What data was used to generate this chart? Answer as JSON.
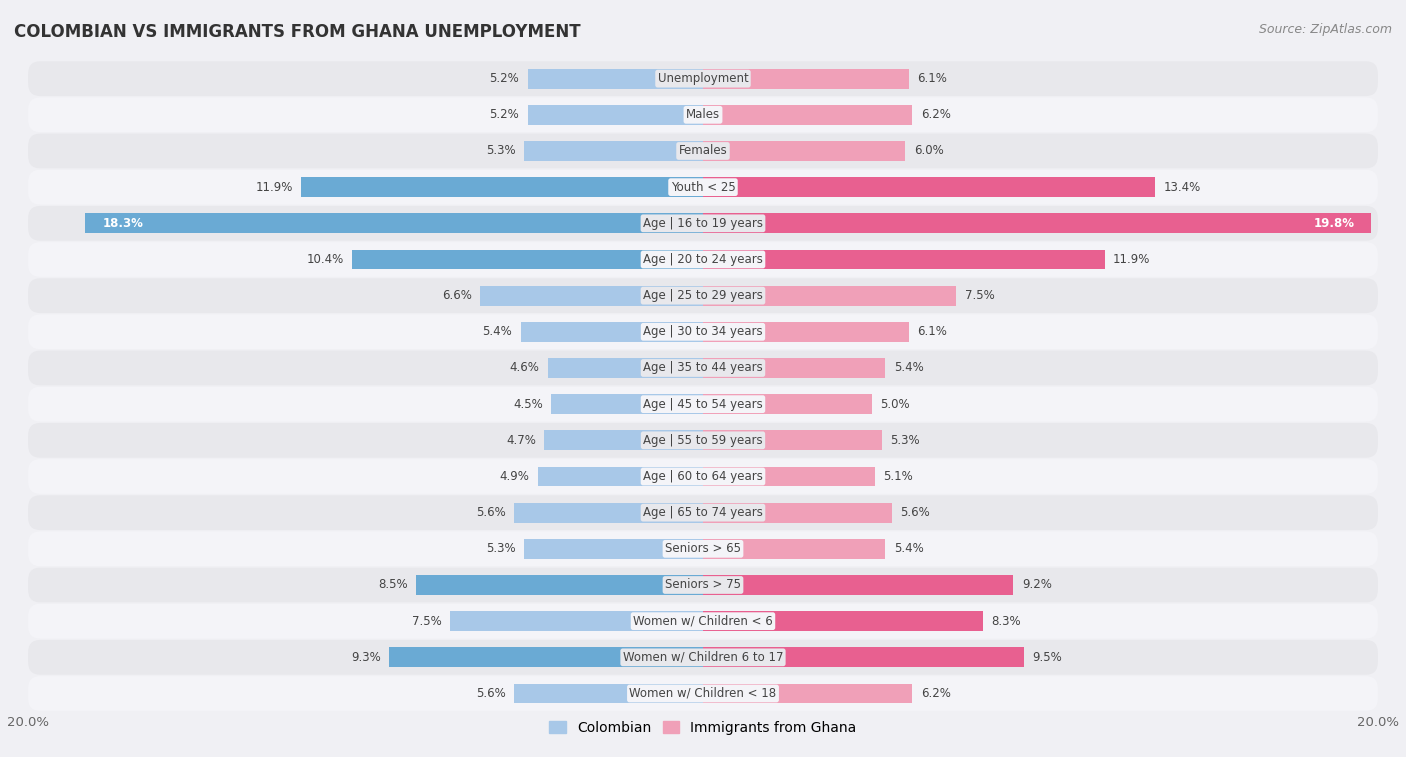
{
  "title": "COLOMBIAN VS IMMIGRANTS FROM GHANA UNEMPLOYMENT",
  "source": "Source: ZipAtlas.com",
  "categories": [
    "Unemployment",
    "Males",
    "Females",
    "Youth < 25",
    "Age | 16 to 19 years",
    "Age | 20 to 24 years",
    "Age | 25 to 29 years",
    "Age | 30 to 34 years",
    "Age | 35 to 44 years",
    "Age | 45 to 54 years",
    "Age | 55 to 59 years",
    "Age | 60 to 64 years",
    "Age | 65 to 74 years",
    "Seniors > 65",
    "Seniors > 75",
    "Women w/ Children < 6",
    "Women w/ Children 6 to 17",
    "Women w/ Children < 18"
  ],
  "colombian": [
    5.2,
    5.2,
    5.3,
    11.9,
    18.3,
    10.4,
    6.6,
    5.4,
    4.6,
    4.5,
    4.7,
    4.9,
    5.6,
    5.3,
    8.5,
    7.5,
    9.3,
    5.6
  ],
  "ghana": [
    6.1,
    6.2,
    6.0,
    13.4,
    19.8,
    11.9,
    7.5,
    6.1,
    5.4,
    5.0,
    5.3,
    5.1,
    5.6,
    5.4,
    9.2,
    8.3,
    9.5,
    6.2
  ],
  "colombian_color_normal": "#a8c8e8",
  "colombian_color_highlight": "#6aaad4",
  "ghana_color_normal": "#f0a0b8",
  "ghana_color_highlight": "#e86090",
  "row_color_dark": "#e8e8ec",
  "row_color_light": "#f4f4f8",
  "background_color": "#f0f0f4",
  "max_val": 20.0,
  "highlight_threshold": 8.0,
  "legend_colombian": "Colombian",
  "legend_ghana": "Immigrants from Ghana",
  "bar_height": 0.55,
  "value_fontsize": 8.5,
  "label_fontsize": 8.5,
  "title_fontsize": 12
}
